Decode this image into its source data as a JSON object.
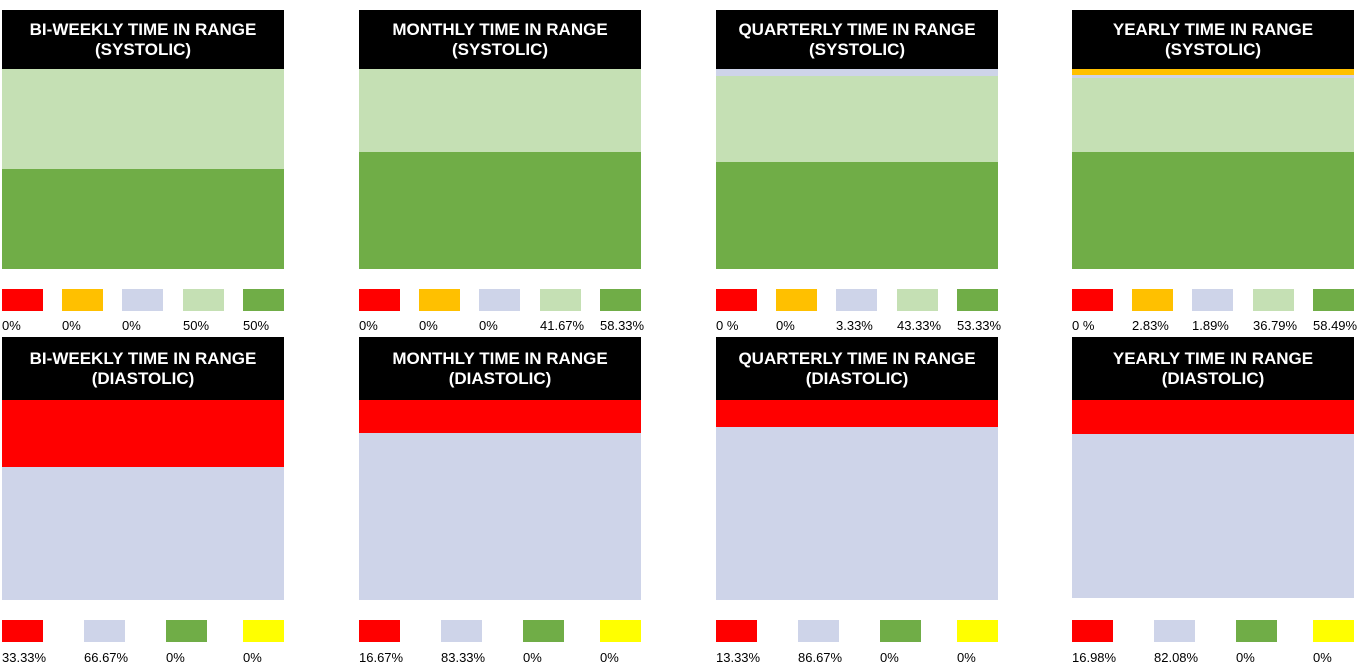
{
  "colors": {
    "red": "#ff0000",
    "orange": "#ffc000",
    "lavender": "#ced4e9",
    "light_green": "#c5e0b4",
    "green": "#70ad47",
    "yellow": "#ffff00"
  },
  "chart_data": [
    {
      "type": "bar",
      "stacked": true,
      "title": "BI-WEEKLY TIME IN RANGE (SYSTOLIC)",
      "categories": [
        "0%",
        "0%",
        "0%",
        "50%",
        "50%"
      ],
      "series_colors": [
        "#ff0000",
        "#ffc000",
        "#ced4e9",
        "#c5e0b4",
        "#70ad47"
      ],
      "values": [
        0,
        0,
        0,
        50,
        50
      ]
    },
    {
      "type": "bar",
      "stacked": true,
      "title": "MONTHLY TIME IN RANGE (SYSTOLIC)",
      "categories": [
        "0%",
        "0%",
        "0%",
        "41.67%",
        "58.33%"
      ],
      "series_colors": [
        "#ff0000",
        "#ffc000",
        "#ced4e9",
        "#c5e0b4",
        "#70ad47"
      ],
      "values": [
        0,
        0,
        0,
        41.67,
        58.33
      ]
    },
    {
      "type": "bar",
      "stacked": true,
      "title": "QUARTERLY TIME IN RANGE (SYSTOLIC)",
      "categories": [
        "0 %",
        "0%",
        "3.33%",
        "43.33%",
        "53.33%"
      ],
      "series_colors": [
        "#ff0000",
        "#ffc000",
        "#ced4e9",
        "#c5e0b4",
        "#70ad47"
      ],
      "values": [
        0,
        0,
        3.33,
        43.33,
        53.33
      ]
    },
    {
      "type": "bar",
      "stacked": true,
      "title": "YEARLY TIME IN RANGE (SYSTOLIC)",
      "categories": [
        "0 %",
        "2.83%",
        "1.89%",
        "36.79%",
        "58.49%"
      ],
      "series_colors": [
        "#ff0000",
        "#ffc000",
        "#ced4e9",
        "#c5e0b4",
        "#70ad47"
      ],
      "values": [
        0,
        2.83,
        1.89,
        36.79,
        58.49
      ]
    },
    {
      "type": "bar",
      "stacked": true,
      "title": "BI-WEEKLY TIME IN RANGE (DIASTOLIC)",
      "categories": [
        "33.33%",
        "66.67%",
        "0%",
        "0%"
      ],
      "series_colors": [
        "#ff0000",
        "#ced4e9",
        "#70ad47",
        "#ffff00"
      ],
      "values": [
        33.33,
        66.67,
        0,
        0
      ]
    },
    {
      "type": "bar",
      "stacked": true,
      "title": "MONTHLY TIME IN RANGE (DIASTOLIC)",
      "categories": [
        "16.67%",
        "83.33%",
        "0%",
        "0%"
      ],
      "series_colors": [
        "#ff0000",
        "#ced4e9",
        "#70ad47",
        "#ffff00"
      ],
      "values": [
        16.67,
        83.33,
        0,
        0
      ]
    },
    {
      "type": "bar",
      "stacked": true,
      "title": "QUARTERLY TIME IN RANGE (DIASTOLIC)",
      "categories": [
        "13.33%",
        "86.67%",
        "0%",
        "0%"
      ],
      "series_colors": [
        "#ff0000",
        "#ced4e9",
        "#70ad47",
        "#ffff00"
      ],
      "values": [
        13.33,
        86.67,
        0,
        0
      ]
    },
    {
      "type": "bar",
      "stacked": true,
      "title": "YEARLY TIME IN RANGE (DIASTOLIC)",
      "categories": [
        "16.98%",
        "82.08%",
        "0%",
        "0%"
      ],
      "series_colors": [
        "#ff0000",
        "#ced4e9",
        "#70ad47",
        "#ffff00"
      ],
      "values": [
        16.98,
        82.08,
        0,
        0
      ]
    }
  ]
}
